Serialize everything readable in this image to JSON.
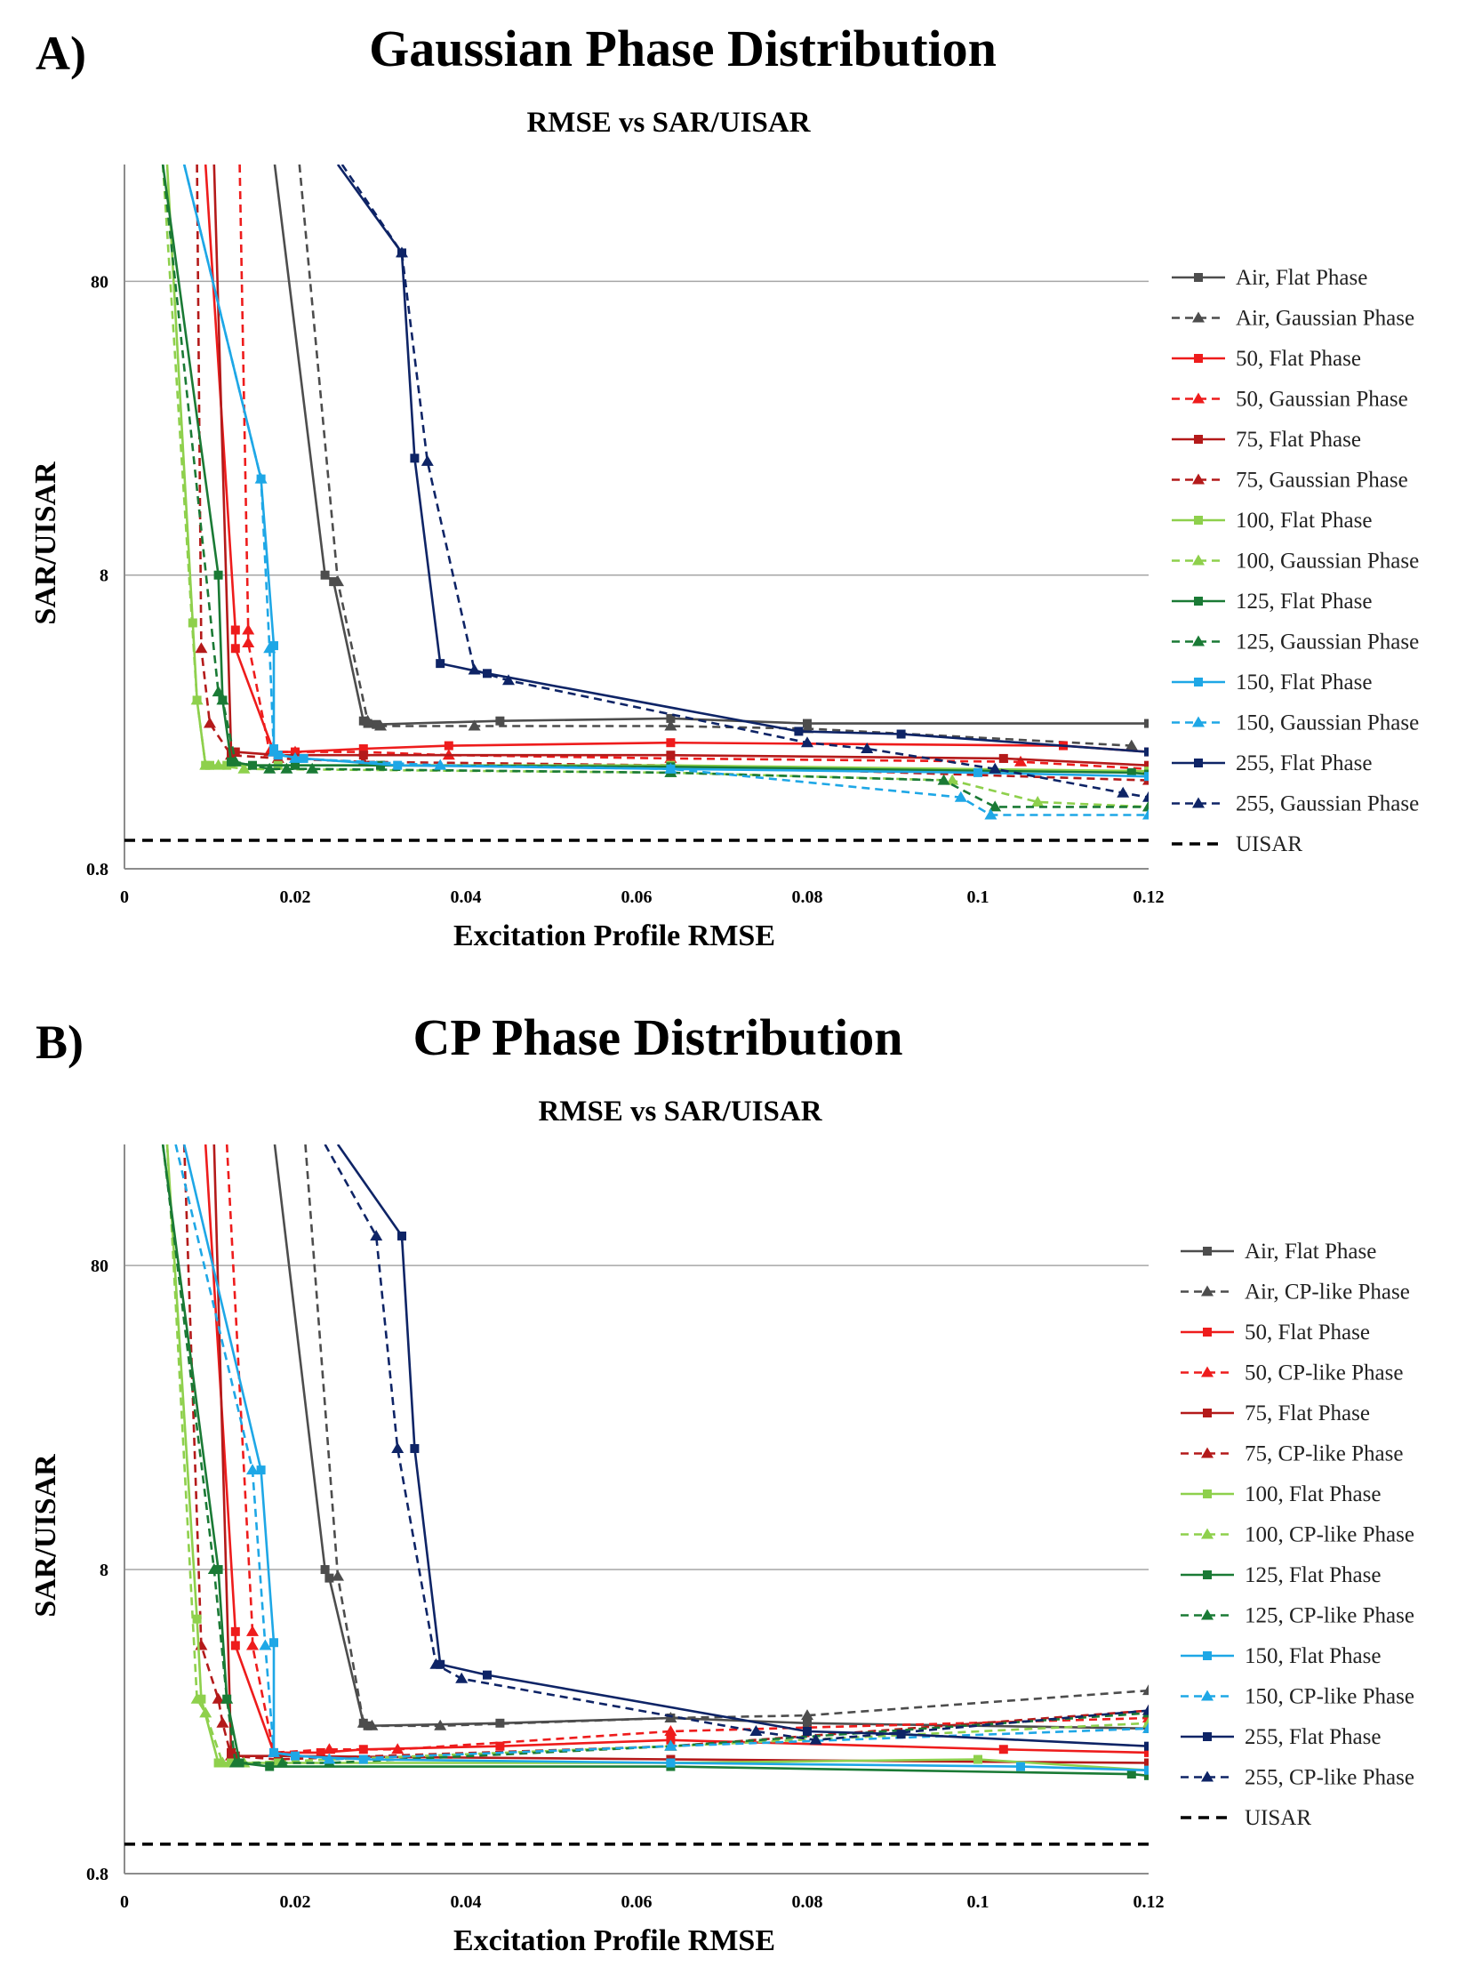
{
  "chart_data": [
    {
      "type": "line",
      "panel_label": "A)",
      "title": "Gaussian Phase Distribution",
      "subtitle": "RMSE vs SAR/UISAR",
      "xlabel": "Excitation Profile RMSE",
      "ylabel": "SAR/UISAR",
      "xlim": [
        0,
        0.12
      ],
      "ylim": [
        0.8,
        200
      ],
      "yscale": "log",
      "xticks": [
        0,
        0.02,
        0.04,
        0.06,
        0.08,
        0.1,
        0.12
      ],
      "xtick_labels": [
        "0",
        "0.02",
        "0.04",
        "0.06",
        "0.08",
        "0.1",
        "0.12"
      ],
      "yticks": [
        0.8,
        8,
        80
      ],
      "ytick_labels": [
        "0.8",
        "8",
        "80"
      ],
      "grid": "horizontal",
      "legend_position": "right",
      "series": [
        {
          "name": "Air, Flat Phase",
          "color": "#4d4d4d",
          "dash": "solid",
          "marker": "square",
          "x": [
            0.0176,
            0.0235,
            0.0245,
            0.028,
            0.0285,
            0.0295,
            0.044,
            0.064,
            0.08,
            0.12
          ],
          "y": [
            200,
            8.0,
            7.6,
            2.55,
            2.5,
            2.48,
            2.55,
            2.6,
            2.5,
            2.5
          ]
        },
        {
          "name": "Air, Gaussian Phase",
          "color": "#4d4d4d",
          "dash": "dashed",
          "marker": "triangle",
          "x": [
            0.0205,
            0.025,
            0.0285,
            0.03,
            0.041,
            0.064,
            0.08,
            0.118
          ],
          "y": [
            200,
            7.6,
            2.55,
            2.45,
            2.45,
            2.45,
            2.4,
            2.1
          ]
        },
        {
          "name": "50, Flat Phase",
          "color": "#ee1c1c",
          "dash": "solid",
          "marker": "square",
          "x": [
            0.0095,
            0.013,
            0.013,
            0.0175,
            0.02,
            0.028,
            0.038,
            0.064,
            0.11,
            0.12
          ],
          "y": [
            200,
            5.2,
            4.5,
            2.0,
            2.0,
            2.05,
            2.1,
            2.15,
            2.1,
            2.0
          ]
        },
        {
          "name": "50, Gaussian Phase",
          "color": "#ee1c1c",
          "dash": "dashed",
          "marker": "triangle",
          "x": [
            0.0135,
            0.0145,
            0.0145,
            0.017,
            0.02,
            0.028,
            0.038,
            0.064,
            0.105,
            0.12
          ],
          "y": [
            200,
            5.2,
            4.7,
            2.0,
            2.0,
            2.0,
            1.95,
            1.9,
            1.85,
            1.75
          ]
        },
        {
          "name": "75, Flat Phase",
          "color": "#b41a1a",
          "dash": "solid",
          "marker": "square",
          "x": [
            0.0105,
            0.0125,
            0.013,
            0.018,
            0.028,
            0.064,
            0.103,
            0.12
          ],
          "y": [
            200,
            2.0,
            2.0,
            1.95,
            1.95,
            1.95,
            1.9,
            1.8
          ]
        },
        {
          "name": "75, Gaussian Phase",
          "color": "#b41a1a",
          "dash": "dashed",
          "marker": "triangle",
          "x": [
            0.0085,
            0.009,
            0.01,
            0.0125,
            0.018,
            0.028,
            0.064,
            0.12
          ],
          "y": [
            200,
            4.5,
            2.5,
            1.95,
            1.9,
            1.85,
            1.8,
            1.6
          ]
        },
        {
          "name": "100, Flat Phase",
          "color": "#8ed04c",
          "dash": "solid",
          "marker": "square",
          "x": [
            0.005,
            0.008,
            0.0085,
            0.0095,
            0.01,
            0.012,
            0.018,
            0.064,
            0.12
          ],
          "y": [
            200,
            5.5,
            3.0,
            1.8,
            1.8,
            1.8,
            1.8,
            1.8,
            1.72
          ]
        },
        {
          "name": "100, Gaussian Phase",
          "color": "#8ed04c",
          "dash": "dashed",
          "marker": "triangle",
          "x": [
            0.0045,
            0.0085,
            0.0095,
            0.011,
            0.014,
            0.064,
            0.097,
            0.107,
            0.12
          ],
          "y": [
            200,
            3.0,
            1.8,
            1.8,
            1.75,
            1.7,
            1.6,
            1.35,
            1.3
          ]
        },
        {
          "name": "125, Flat Phase",
          "color": "#1a7a35",
          "dash": "solid",
          "marker": "square",
          "x": [
            0.0045,
            0.011,
            0.0115,
            0.0125,
            0.015,
            0.02,
            0.03,
            0.064,
            0.118,
            0.12
          ],
          "y": [
            200,
            8.0,
            3.0,
            1.85,
            1.8,
            1.8,
            1.8,
            1.78,
            1.7,
            1.68
          ]
        },
        {
          "name": "125, Gaussian Phase",
          "color": "#1a7a35",
          "dash": "dashed",
          "marker": "triangle",
          "x": [
            0.0045,
            0.011,
            0.0115,
            0.013,
            0.017,
            0.019,
            0.022,
            0.064,
            0.096,
            0.102,
            0.12
          ],
          "y": [
            200,
            3.2,
            3.0,
            1.85,
            1.75,
            1.75,
            1.75,
            1.7,
            1.6,
            1.3,
            1.3
          ]
        },
        {
          "name": "150, Flat Phase",
          "color": "#1ea7e6",
          "dash": "solid",
          "marker": "square",
          "x": [
            0.007,
            0.016,
            0.0175,
            0.0175,
            0.018,
            0.021,
            0.032,
            0.064,
            0.1,
            0.12
          ],
          "y": [
            200,
            17.0,
            4.6,
            2.05,
            1.95,
            1.9,
            1.8,
            1.75,
            1.7,
            1.65
          ]
        },
        {
          "name": "150, Gaussian Phase",
          "color": "#1ea7e6",
          "dash": "dashed",
          "marker": "triangle",
          "x": [
            0.007,
            0.016,
            0.017,
            0.0175,
            0.02,
            0.037,
            0.064,
            0.098,
            0.1015,
            0.12
          ],
          "y": [
            200,
            17.0,
            4.5,
            2.0,
            1.9,
            1.8,
            1.75,
            1.4,
            1.22,
            1.22
          ]
        },
        {
          "name": "255, Flat Phase",
          "color": "#0e2466",
          "dash": "solid",
          "marker": "square",
          "x": [
            0.025,
            0.0325,
            0.034,
            0.037,
            0.0425,
            0.079,
            0.091,
            0.12
          ],
          "y": [
            200,
            100,
            20.0,
            4.0,
            3.7,
            2.35,
            2.3,
            2.0
          ]
        },
        {
          "name": "255, Gaussian Phase",
          "color": "#0e2466",
          "dash": "dashed",
          "marker": "triangle",
          "x": [
            0.0255,
            0.0325,
            0.0355,
            0.041,
            0.045,
            0.08,
            0.087,
            0.102,
            0.117,
            0.12
          ],
          "y": [
            200,
            100,
            19.5,
            3.8,
            3.5,
            2.15,
            2.05,
            1.75,
            1.45,
            1.4
          ]
        },
        {
          "name": "UISAR",
          "color": "#000000",
          "dash": "dashed-bold",
          "marker": "none",
          "x": [
            0,
            0.12
          ],
          "y": [
            1,
            1
          ]
        }
      ]
    },
    {
      "type": "line",
      "panel_label": "B)",
      "title": "CP Phase Distribution",
      "subtitle": "RMSE vs SAR/UISAR",
      "xlabel": "Excitation Profile RMSE",
      "ylabel": "SAR/UISAR",
      "xlim": [
        0,
        0.12
      ],
      "ylim": [
        0.8,
        200
      ],
      "yscale": "log",
      "xticks": [
        0,
        0.02,
        0.04,
        0.06,
        0.08,
        0.1,
        0.12
      ],
      "xtick_labels": [
        "0",
        "0.02",
        "0.04",
        "0.06",
        "0.08",
        "0.1",
        "0.12"
      ],
      "yticks": [
        0.8,
        8,
        80
      ],
      "ytick_labels": [
        "0.8",
        "8",
        "80"
      ],
      "grid": "horizontal",
      "legend_position": "right",
      "series": [
        {
          "name": "Air, Flat Phase",
          "color": "#4d4d4d",
          "dash": "solid",
          "marker": "square",
          "x": [
            0.0176,
            0.0235,
            0.024,
            0.028,
            0.0285,
            0.044,
            0.064,
            0.08,
            0.12
          ],
          "y": [
            200,
            8.0,
            7.5,
            2.5,
            2.45,
            2.5,
            2.6,
            2.5,
            2.4
          ]
        },
        {
          "name": "Air, CP-like Phase",
          "color": "#4d4d4d",
          "dash": "dashed",
          "marker": "triangle",
          "x": [
            0.0212,
            0.025,
            0.028,
            0.029,
            0.037,
            0.064,
            0.08,
            0.12
          ],
          "y": [
            200,
            7.6,
            2.5,
            2.45,
            2.45,
            2.6,
            2.65,
            3.2
          ]
        },
        {
          "name": "50, Flat Phase",
          "color": "#ee1c1c",
          "dash": "solid",
          "marker": "square",
          "x": [
            0.0095,
            0.013,
            0.013,
            0.0175,
            0.023,
            0.028,
            0.044,
            0.064,
            0.103,
            0.12
          ],
          "y": [
            200,
            5.0,
            4.5,
            2.0,
            2.0,
            2.05,
            2.1,
            2.2,
            2.05,
            2.0
          ]
        },
        {
          "name": "50, CP-like Phase",
          "color": "#ee1c1c",
          "dash": "dashed",
          "marker": "triangle",
          "x": [
            0.012,
            0.015,
            0.015,
            0.0175,
            0.024,
            0.032,
            0.064,
            0.12
          ],
          "y": [
            200,
            5.0,
            4.5,
            2.0,
            2.05,
            2.05,
            2.35,
            2.6
          ]
        },
        {
          "name": "75, Flat Phase",
          "color": "#b41a1a",
          "dash": "solid",
          "marker": "square",
          "x": [
            0.0105,
            0.0125,
            0.013,
            0.018,
            0.064,
            0.12
          ],
          "y": [
            200,
            2.0,
            1.95,
            1.95,
            1.9,
            1.85
          ]
        },
        {
          "name": "75, CP-like Phase",
          "color": "#b41a1a",
          "dash": "dashed",
          "marker": "triangle",
          "x": [
            0.007,
            0.009,
            0.011,
            0.0115,
            0.0125,
            0.018,
            0.064,
            0.12
          ],
          "y": [
            200,
            4.5,
            3.0,
            2.5,
            1.95,
            1.9,
            2.1,
            2.75
          ]
        },
        {
          "name": "100, Flat Phase",
          "color": "#8ed04c",
          "dash": "solid",
          "marker": "square",
          "x": [
            0.005,
            0.0085,
            0.009,
            0.011,
            0.0125,
            0.018,
            0.064,
            0.1,
            0.12
          ],
          "y": [
            200,
            5.5,
            3.0,
            1.85,
            1.85,
            1.85,
            1.85,
            1.9,
            1.75
          ]
        },
        {
          "name": "100, CP-like Phase",
          "color": "#8ed04c",
          "dash": "dashed",
          "marker": "triangle",
          "x": [
            0.005,
            0.0085,
            0.0095,
            0.0115,
            0.014,
            0.064,
            0.12
          ],
          "y": [
            200,
            3.0,
            2.7,
            1.85,
            1.85,
            2.1,
            2.5
          ]
        },
        {
          "name": "125, Flat Phase",
          "color": "#1a7a35",
          "dash": "solid",
          "marker": "square",
          "x": [
            0.0045,
            0.011,
            0.012,
            0.0135,
            0.017,
            0.064,
            0.118,
            0.12
          ],
          "y": [
            200,
            8.0,
            3.0,
            1.85,
            1.8,
            1.8,
            1.7,
            1.68
          ]
        },
        {
          "name": "125, CP-like Phase",
          "color": "#1a7a35",
          "dash": "dashed",
          "marker": "triangle",
          "x": [
            0.0045,
            0.0105,
            0.012,
            0.013,
            0.0185,
            0.024,
            0.064,
            0.12
          ],
          "y": [
            200,
            8.0,
            3.0,
            1.85,
            1.85,
            1.85,
            2.1,
            2.7
          ]
        },
        {
          "name": "150, Flat Phase",
          "color": "#1ea7e6",
          "dash": "solid",
          "marker": "square",
          "x": [
            0.007,
            0.016,
            0.0175,
            0.0175,
            0.02,
            0.028,
            0.064,
            0.105,
            0.12
          ],
          "y": [
            200,
            17.0,
            4.6,
            2.0,
            1.95,
            1.9,
            1.85,
            1.8,
            1.75
          ]
        },
        {
          "name": "150, CP-like Phase",
          "color": "#1ea7e6",
          "dash": "dashed",
          "marker": "triangle",
          "x": [
            0.006,
            0.015,
            0.0165,
            0.0175,
            0.024,
            0.064,
            0.12
          ],
          "y": [
            200,
            17.0,
            4.5,
            2.0,
            1.9,
            2.1,
            2.4
          ]
        },
        {
          "name": "255, Flat Phase",
          "color": "#0e2466",
          "dash": "solid",
          "marker": "square",
          "x": [
            0.025,
            0.0325,
            0.034,
            0.037,
            0.0425,
            0.08,
            0.091,
            0.12
          ],
          "y": [
            200,
            100,
            20.0,
            3.9,
            3.6,
            2.35,
            2.3,
            2.1
          ]
        },
        {
          "name": "255, CP-like Phase",
          "color": "#0e2466",
          "dash": "dashed",
          "marker": "triangle",
          "x": [
            0.0235,
            0.0295,
            0.032,
            0.0365,
            0.0395,
            0.074,
            0.081,
            0.12
          ],
          "y": [
            200,
            100,
            20.0,
            3.9,
            3.5,
            2.35,
            2.2,
            2.75
          ]
        },
        {
          "name": "UISAR",
          "color": "#000000",
          "dash": "dashed-bold",
          "marker": "none",
          "x": [
            0,
            0.12
          ],
          "y": [
            1,
            1
          ]
        }
      ]
    }
  ]
}
